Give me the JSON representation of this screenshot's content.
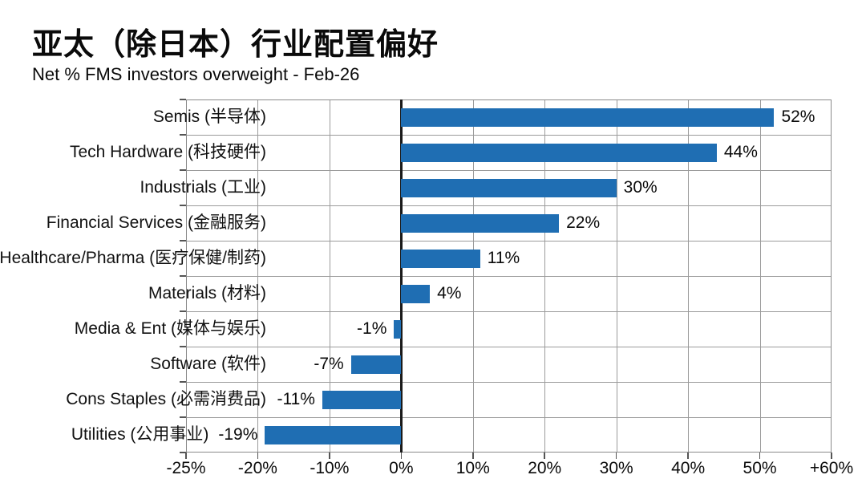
{
  "chart_data": {
    "type": "bar",
    "orientation": "horizontal",
    "title": "亚太（除日本）行业配置偏好",
    "subtitle": "Net % FMS investors overweight - Feb-26",
    "categories": [
      "Semis (半导体)",
      "Tech Hardware (科技硬件)",
      "Industrials (工业)",
      "Financial Services (金融服务)",
      "Healthcare/Pharma (医疗保健/制药)",
      "Materials (材料)",
      "Media & Ent (媒体与娱乐)",
      "Software (软件)",
      "Cons Staples (必需消费品)",
      "Utilities (公用事业)"
    ],
    "values": [
      52,
      44,
      30,
      22,
      11,
      4,
      -1,
      -7,
      -11,
      -19
    ],
    "value_labels": [
      "52%",
      "44%",
      "30%",
      "22%",
      "11%",
      "4%",
      "-1%",
      "-7%",
      "-11%",
      "-19%"
    ],
    "x_tick_labels": [
      "-25%",
      "-20%",
      "-10%",
      "0%",
      "10%",
      "20%",
      "30%",
      "40%",
      "50%",
      "+60%"
    ],
    "xlim": [
      -30,
      60
    ],
    "grid": true,
    "legend": false,
    "value_label_position": "outside-bar-end",
    "colors": {
      "bar": "#1f6eb3",
      "gridline": "#9b9b9b",
      "plot_border": "#8a8a8a",
      "zero_line": "#1a1a1a",
      "tick": "#555555",
      "text": "#111111",
      "background": "#ffffff"
    }
  }
}
